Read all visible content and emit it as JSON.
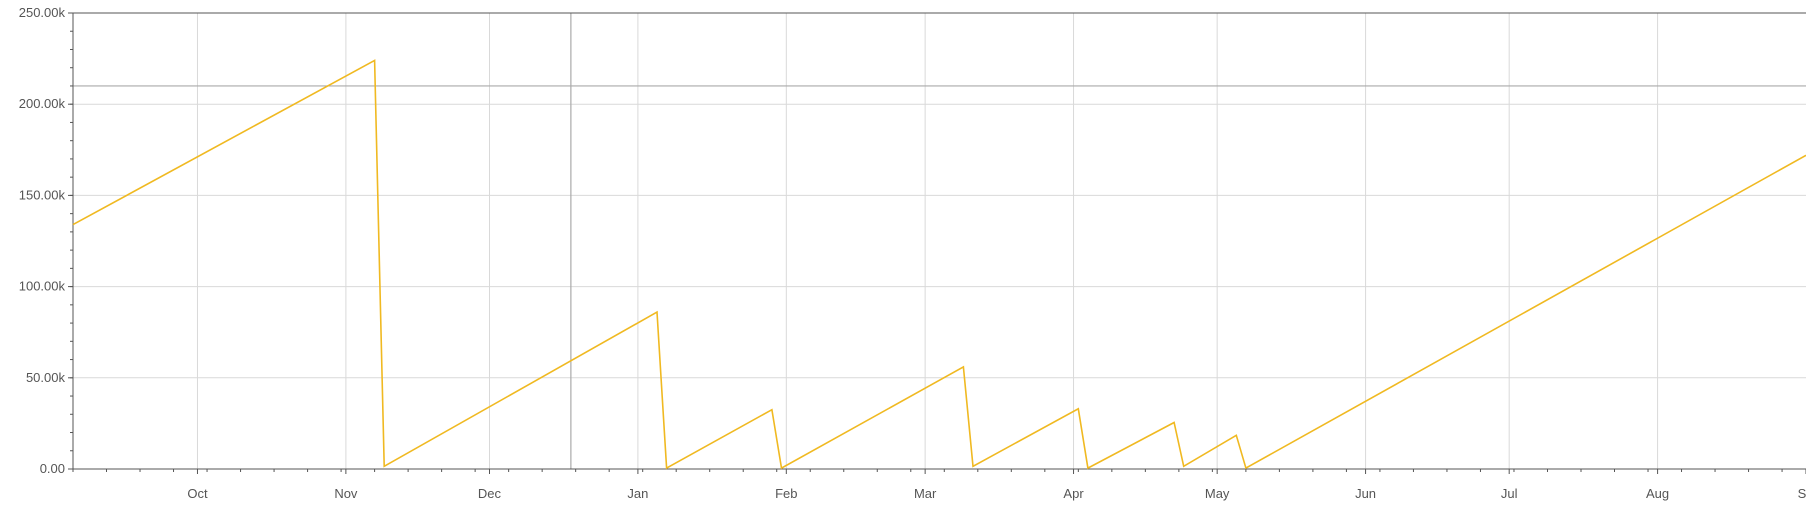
{
  "chart_data": {
    "type": "line",
    "title": "",
    "xlabel": "",
    "ylabel": "",
    "x_axis": {
      "type": "date",
      "range": [
        "2023-09-05",
        "2024-09-01"
      ],
      "tick_dates": [
        "2023-10-01",
        "2023-11-01",
        "2023-12-01",
        "2024-01-01",
        "2024-02-01",
        "2024-03-01",
        "2024-04-01",
        "2024-05-01",
        "2024-06-01",
        "2024-07-01",
        "2024-08-01",
        "2024-09-01"
      ],
      "tick_labels": [
        "Oct",
        "Nov",
        "Dec",
        "Jan",
        "Feb",
        "Mar",
        "Apr",
        "May",
        "Jun",
        "Jul",
        "Aug",
        "S"
      ]
    },
    "y_axis": {
      "range": [
        0,
        250000
      ],
      "ticks": [
        0,
        50000,
        100000,
        150000,
        200000,
        250000
      ],
      "tick_labels": [
        "0.00",
        "50.00k",
        "100.00k",
        "150.00k",
        "200.00k",
        "250.00k"
      ]
    },
    "grid": true,
    "reference_lines": {
      "horizontal_y": 210000,
      "vertical_x": "2023-12-18"
    },
    "series": [
      {
        "color": "#f0b921",
        "points": [
          [
            "2023-09-05",
            134000
          ],
          [
            "2023-11-07",
            224000
          ],
          [
            "2023-11-09",
            1500
          ],
          [
            "2024-01-05",
            86000
          ],
          [
            "2024-01-07",
            500
          ],
          [
            "2024-01-29",
            32500
          ],
          [
            "2024-01-31",
            500
          ],
          [
            "2024-03-09",
            56000
          ],
          [
            "2024-03-11",
            1500
          ],
          [
            "2024-04-02",
            33000
          ],
          [
            "2024-04-04",
            500
          ],
          [
            "2024-04-22",
            25500
          ],
          [
            "2024-04-24",
            1500
          ],
          [
            "2024-05-05",
            18500
          ],
          [
            "2024-05-07",
            500
          ],
          [
            "2024-09-01",
            172000
          ]
        ]
      }
    ]
  }
}
